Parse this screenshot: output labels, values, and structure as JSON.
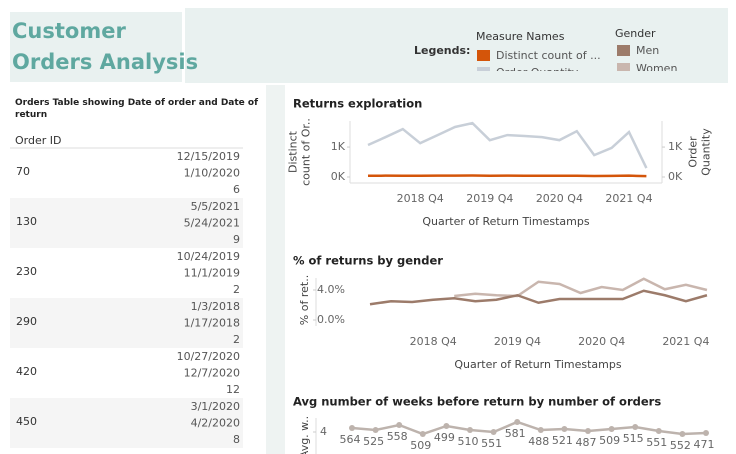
{
  "header": {
    "title_lines": [
      "Customer",
      "Orders Analysis"
    ]
  },
  "legends": {
    "label": "Legends:",
    "measure_title": "Measure Names",
    "gender_title": "Gender"
  },
  "table": {
    "title": "Orders  Table showing Date of order and Date of return",
    "column": "Order ID",
    "rows": [
      [
        70,
        "12/15/2019",
        "1/10/2020",
        6
      ],
      [
        130,
        "5/5/2021",
        "5/24/2021",
        9
      ],
      [
        230,
        "10/24/2019",
        "11/1/2019",
        2
      ],
      [
        290,
        "1/3/2018",
        "1/17/2018",
        2
      ],
      [
        420,
        "10/27/2020",
        "12/7/2020",
        12
      ],
      [
        450,
        "3/1/2020",
        "4/2/2020",
        8
      ]
    ]
  },
  "chart_data": [
    {
      "type": "line",
      "title": "Returns exploration",
      "x_label": "Quarter of Return Timestamps",
      "y_label": [
        "Distinct",
        "count of Or.."
      ],
      "y2_label": [
        "Order",
        "Quantity"
      ],
      "categories": [
        null,
        null,
        null,
        "2018 Q4",
        null,
        null,
        null,
        "2019 Q4",
        null,
        null,
        null,
        "2020 Q4",
        null,
        null,
        null,
        "2021 Q4",
        null
      ],
      "ylim": [
        -200,
        1870
      ],
      "yticks": [
        {
          "value": 0,
          "label": "0K"
        },
        {
          "value": 1000,
          "label": "1K"
        }
      ],
      "y2lim": [
        -200,
        1870
      ],
      "y2ticks": [
        {
          "value": 0,
          "label": "0K"
        },
        {
          "value": 1000,
          "label": "1K"
        }
      ],
      "series": [
        {
          "name": "Distinct count of ...",
          "color": "#d4550a",
          "values": [
            40,
            45,
            40,
            42,
            45,
            48,
            50,
            42,
            45,
            42,
            40,
            40,
            42,
            35,
            38,
            45,
            30
          ]
        },
        {
          "name": "Order Quantity",
          "color": "#c8cfd8",
          "axis": "y2",
          "values": [
            1070,
            1330,
            1600,
            1130,
            1400,
            1670,
            1800,
            1230,
            1400,
            1370,
            1330,
            1230,
            1530,
            730,
            970,
            1500,
            300
          ]
        }
      ]
    },
    {
      "type": "line",
      "title": "% of returns by gender",
      "x_label": "Quarter of Return Timestamps",
      "y_label": [
        "% of ret.."
      ],
      "categories": [
        null,
        null,
        null,
        "2018 Q4",
        null,
        null,
        null,
        "2019 Q4",
        null,
        null,
        null,
        "2020 Q4",
        null,
        null,
        null,
        "2021 Q4",
        null
      ],
      "ylim": [
        -0.8,
        5.6
      ],
      "yticks": [
        {
          "value": 0,
          "label": "0.0%"
        },
        {
          "value": 4,
          "label": "4.0%"
        }
      ],
      "series": [
        {
          "name": "Men",
          "color": "#9c7b6a",
          "values": [
            2.1,
            2.5,
            2.4,
            2.7,
            2.9,
            2.5,
            2.7,
            3.3,
            2.3,
            2.8,
            2.8,
            2.8,
            2.8,
            3.9,
            3.3,
            2.5,
            3.3
          ]
        },
        {
          "name": "Women",
          "color": "#c9b6ae",
          "values": [
            null,
            null,
            null,
            null,
            3.2,
            3.5,
            3.3,
            3.2,
            5.1,
            4.8,
            3.6,
            4.4,
            4.0,
            5.5,
            4.1,
            4.7,
            4.0
          ]
        }
      ]
    },
    {
      "type": "line",
      "title": "Avg number of weeks before return by number of orders",
      "y_label": [
        "Avg. w.."
      ],
      "ylim": [
        2.8,
        4.7
      ],
      "yticks": [
        4
      ],
      "series": [
        {
          "color": "#bdb3ad",
          "values": [
            4.2,
            4.1,
            4.35,
            3.9,
            4.3,
            4.1,
            4.0,
            4.5,
            4.1,
            4.15,
            4.05,
            4.15,
            4.25,
            4.05,
            3.9,
            3.95
          ],
          "point_labels": [
            564,
            525,
            558,
            509,
            499,
            510,
            551,
            581,
            488,
            521,
            487,
            509,
            515,
            551,
            552,
            471
          ]
        }
      ]
    }
  ]
}
